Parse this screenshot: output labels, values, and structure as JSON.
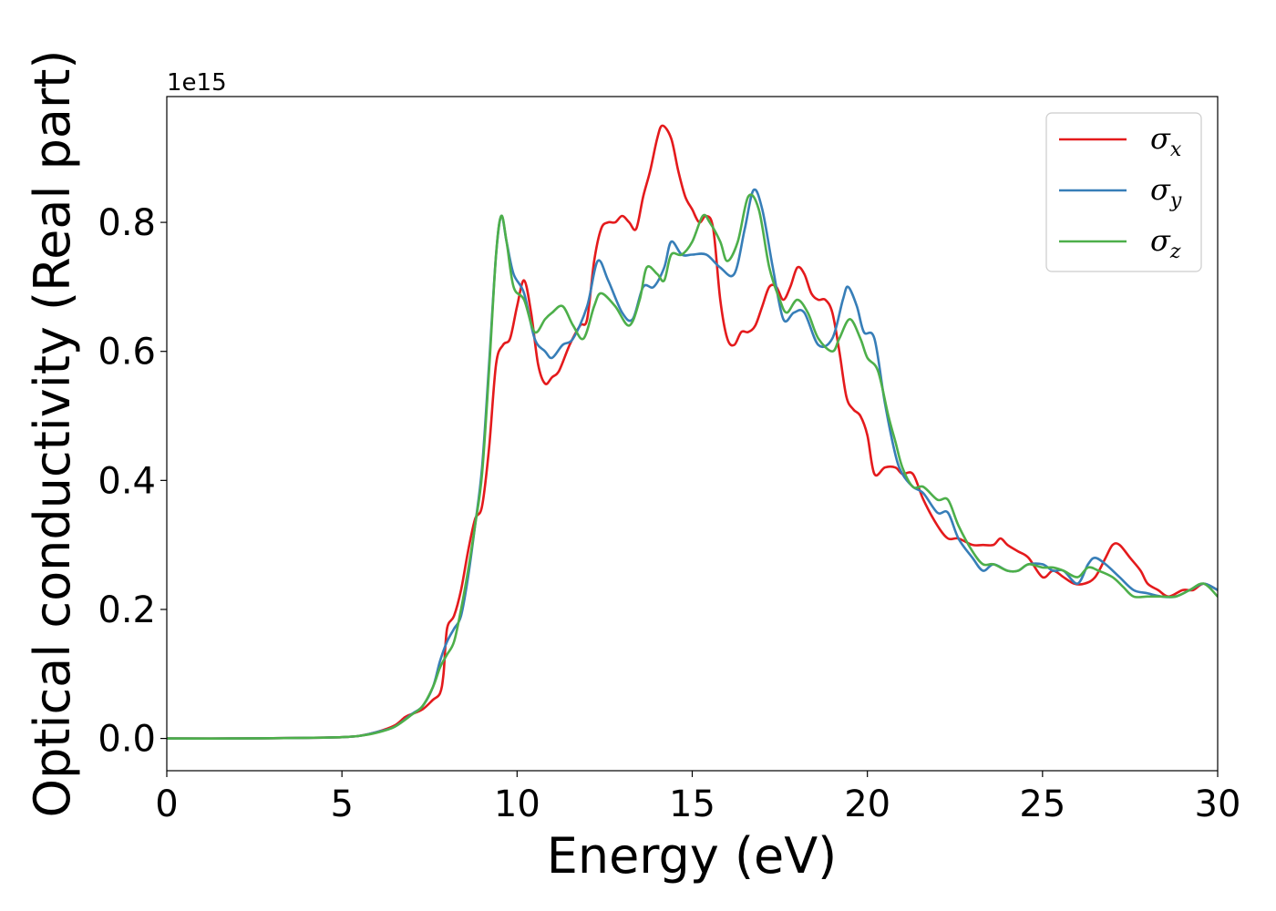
{
  "chart_data": {
    "type": "line",
    "title": "",
    "xlabel": "Energy (eV)",
    "ylabel": "Optical conductivity (Real part)",
    "y_offset_label": "1e15",
    "xlim": [
      0,
      30
    ],
    "ylim": [
      -0.05,
      0.995
    ],
    "xticks": [
      0,
      5,
      10,
      15,
      20,
      25,
      30
    ],
    "yticks": [
      0.0,
      0.2,
      0.4,
      0.6,
      0.8
    ],
    "xtick_labels": [
      "0",
      "5",
      "10",
      "15",
      "20",
      "25",
      "30"
    ],
    "ytick_labels": [
      "0.0",
      "0.2",
      "0.4",
      "0.6",
      "0.8"
    ],
    "grid": false,
    "legend_position": "top-right",
    "series": [
      {
        "name": "σx",
        "symbol": "σ",
        "subscript": "x",
        "color": "#e41a1c",
        "points": [
          [
            0,
            0.0
          ],
          [
            2,
            0.0
          ],
          [
            4,
            0.001
          ],
          [
            5,
            0.002
          ],
          [
            5.5,
            0.004
          ],
          [
            6,
            0.01
          ],
          [
            6.5,
            0.02
          ],
          [
            6.8,
            0.033
          ],
          [
            7,
            0.038
          ],
          [
            7.3,
            0.045
          ],
          [
            7.6,
            0.06
          ],
          [
            7.8,
            0.07
          ],
          [
            7.9,
            0.1
          ],
          [
            8.0,
            0.17
          ],
          [
            8.2,
            0.19
          ],
          [
            8.4,
            0.23
          ],
          [
            8.6,
            0.29
          ],
          [
            8.8,
            0.34
          ],
          [
            9.0,
            0.36
          ],
          [
            9.2,
            0.45
          ],
          [
            9.4,
            0.58
          ],
          [
            9.6,
            0.61
          ],
          [
            9.8,
            0.62
          ],
          [
            10.0,
            0.67
          ],
          [
            10.2,
            0.71
          ],
          [
            10.4,
            0.66
          ],
          [
            10.6,
            0.58
          ],
          [
            10.8,
            0.55
          ],
          [
            11.0,
            0.56
          ],
          [
            11.2,
            0.57
          ],
          [
            11.5,
            0.61
          ],
          [
            11.8,
            0.64
          ],
          [
            12.0,
            0.65
          ],
          [
            12.2,
            0.74
          ],
          [
            12.4,
            0.79
          ],
          [
            12.6,
            0.8
          ],
          [
            12.8,
            0.8
          ],
          [
            13.0,
            0.81
          ],
          [
            13.2,
            0.8
          ],
          [
            13.4,
            0.79
          ],
          [
            13.6,
            0.84
          ],
          [
            13.8,
            0.88
          ],
          [
            14.0,
            0.93
          ],
          [
            14.15,
            0.95
          ],
          [
            14.4,
            0.93
          ],
          [
            14.6,
            0.88
          ],
          [
            14.8,
            0.84
          ],
          [
            15.0,
            0.82
          ],
          [
            15.2,
            0.8
          ],
          [
            15.4,
            0.81
          ],
          [
            15.6,
            0.79
          ],
          [
            15.8,
            0.68
          ],
          [
            16.0,
            0.62
          ],
          [
            16.2,
            0.61
          ],
          [
            16.4,
            0.63
          ],
          [
            16.6,
            0.63
          ],
          [
            16.8,
            0.64
          ],
          [
            17.0,
            0.67
          ],
          [
            17.2,
            0.7
          ],
          [
            17.4,
            0.7
          ],
          [
            17.6,
            0.68
          ],
          [
            17.8,
            0.7
          ],
          [
            18.0,
            0.73
          ],
          [
            18.2,
            0.72
          ],
          [
            18.4,
            0.69
          ],
          [
            18.6,
            0.68
          ],
          [
            18.8,
            0.68
          ],
          [
            19.0,
            0.66
          ],
          [
            19.2,
            0.6
          ],
          [
            19.4,
            0.53
          ],
          [
            19.6,
            0.51
          ],
          [
            19.8,
            0.5
          ],
          [
            20.0,
            0.47
          ],
          [
            20.2,
            0.41
          ],
          [
            20.5,
            0.42
          ],
          [
            20.8,
            0.42
          ],
          [
            21.0,
            0.41
          ],
          [
            21.3,
            0.41
          ],
          [
            21.6,
            0.37
          ],
          [
            22.0,
            0.33
          ],
          [
            22.3,
            0.31
          ],
          [
            22.6,
            0.31
          ],
          [
            23.0,
            0.3
          ],
          [
            23.3,
            0.3
          ],
          [
            23.6,
            0.3
          ],
          [
            23.8,
            0.31
          ],
          [
            24.0,
            0.3
          ],
          [
            24.3,
            0.29
          ],
          [
            24.6,
            0.28
          ],
          [
            25.0,
            0.25
          ],
          [
            25.3,
            0.26
          ],
          [
            25.6,
            0.25
          ],
          [
            25.9,
            0.24
          ],
          [
            26.2,
            0.24
          ],
          [
            26.5,
            0.25
          ],
          [
            26.8,
            0.28
          ],
          [
            27.0,
            0.3
          ],
          [
            27.2,
            0.3
          ],
          [
            27.5,
            0.28
          ],
          [
            27.8,
            0.26
          ],
          [
            28.0,
            0.24
          ],
          [
            28.3,
            0.23
          ],
          [
            28.6,
            0.22
          ],
          [
            29.0,
            0.23
          ],
          [
            29.3,
            0.23
          ],
          [
            29.6,
            0.24
          ],
          [
            30.0,
            0.23
          ]
        ]
      },
      {
        "name": "σy",
        "symbol": "σ",
        "subscript": "y",
        "color": "#377eb8",
        "points": [
          [
            0,
            0.0
          ],
          [
            2,
            0.0
          ],
          [
            4,
            0.001
          ],
          [
            5,
            0.002
          ],
          [
            5.5,
            0.004
          ],
          [
            6,
            0.01
          ],
          [
            6.5,
            0.018
          ],
          [
            7,
            0.038
          ],
          [
            7.3,
            0.05
          ],
          [
            7.6,
            0.08
          ],
          [
            7.8,
            0.12
          ],
          [
            8.0,
            0.15
          ],
          [
            8.2,
            0.17
          ],
          [
            8.4,
            0.19
          ],
          [
            8.6,
            0.25
          ],
          [
            8.8,
            0.33
          ],
          [
            9.0,
            0.42
          ],
          [
            9.2,
            0.58
          ],
          [
            9.4,
            0.75
          ],
          [
            9.55,
            0.81
          ],
          [
            9.7,
            0.77
          ],
          [
            9.9,
            0.72
          ],
          [
            10.2,
            0.69
          ],
          [
            10.5,
            0.62
          ],
          [
            10.8,
            0.6
          ],
          [
            11.0,
            0.59
          ],
          [
            11.3,
            0.61
          ],
          [
            11.6,
            0.62
          ],
          [
            12.0,
            0.67
          ],
          [
            12.3,
            0.74
          ],
          [
            12.6,
            0.71
          ],
          [
            13.0,
            0.66
          ],
          [
            13.3,
            0.65
          ],
          [
            13.6,
            0.7
          ],
          [
            13.9,
            0.7
          ],
          [
            14.2,
            0.73
          ],
          [
            14.4,
            0.77
          ],
          [
            14.7,
            0.75
          ],
          [
            15.0,
            0.75
          ],
          [
            15.4,
            0.75
          ],
          [
            15.8,
            0.73
          ],
          [
            16.2,
            0.72
          ],
          [
            16.5,
            0.79
          ],
          [
            16.75,
            0.85
          ],
          [
            17.0,
            0.82
          ],
          [
            17.3,
            0.73
          ],
          [
            17.6,
            0.65
          ],
          [
            17.9,
            0.66
          ],
          [
            18.2,
            0.66
          ],
          [
            18.6,
            0.61
          ],
          [
            19.0,
            0.62
          ],
          [
            19.3,
            0.68
          ],
          [
            19.45,
            0.7
          ],
          [
            19.7,
            0.67
          ],
          [
            19.9,
            0.63
          ],
          [
            20.2,
            0.62
          ],
          [
            20.5,
            0.52
          ],
          [
            20.8,
            0.44
          ],
          [
            21.0,
            0.41
          ],
          [
            21.3,
            0.39
          ],
          [
            21.6,
            0.38
          ],
          [
            22.0,
            0.35
          ],
          [
            22.3,
            0.35
          ],
          [
            22.6,
            0.31
          ],
          [
            23.0,
            0.28
          ],
          [
            23.3,
            0.26
          ],
          [
            23.6,
            0.27
          ],
          [
            24.0,
            0.26
          ],
          [
            24.3,
            0.26
          ],
          [
            24.6,
            0.27
          ],
          [
            25.0,
            0.27
          ],
          [
            25.3,
            0.26
          ],
          [
            25.6,
            0.26
          ],
          [
            26.0,
            0.24
          ],
          [
            26.3,
            0.27
          ],
          [
            26.5,
            0.28
          ],
          [
            26.8,
            0.27
          ],
          [
            27.2,
            0.25
          ],
          [
            27.6,
            0.23
          ],
          [
            28.0,
            0.225
          ],
          [
            28.4,
            0.22
          ],
          [
            28.8,
            0.22
          ],
          [
            29.2,
            0.23
          ],
          [
            29.6,
            0.24
          ],
          [
            30.0,
            0.23
          ]
        ]
      },
      {
        "name": "σz",
        "symbol": "σ",
        "subscript": "z",
        "color": "#4daf4a",
        "points": [
          [
            0,
            0.0
          ],
          [
            2,
            0.0
          ],
          [
            4,
            0.001
          ],
          [
            5,
            0.002
          ],
          [
            5.5,
            0.004
          ],
          [
            6,
            0.009
          ],
          [
            6.5,
            0.018
          ],
          [
            7,
            0.037
          ],
          [
            7.3,
            0.05
          ],
          [
            7.6,
            0.08
          ],
          [
            7.8,
            0.11
          ],
          [
            8.0,
            0.13
          ],
          [
            8.2,
            0.15
          ],
          [
            8.4,
            0.2
          ],
          [
            8.6,
            0.26
          ],
          [
            8.8,
            0.33
          ],
          [
            9.0,
            0.41
          ],
          [
            9.2,
            0.57
          ],
          [
            9.4,
            0.75
          ],
          [
            9.55,
            0.81
          ],
          [
            9.7,
            0.77
          ],
          [
            9.9,
            0.7
          ],
          [
            10.2,
            0.68
          ],
          [
            10.5,
            0.63
          ],
          [
            10.8,
            0.65
          ],
          [
            11.0,
            0.66
          ],
          [
            11.3,
            0.67
          ],
          [
            11.6,
            0.64
          ],
          [
            11.9,
            0.62
          ],
          [
            12.2,
            0.67
          ],
          [
            12.4,
            0.69
          ],
          [
            12.8,
            0.67
          ],
          [
            13.2,
            0.64
          ],
          [
            13.5,
            0.68
          ],
          [
            13.7,
            0.73
          ],
          [
            14.0,
            0.72
          ],
          [
            14.2,
            0.71
          ],
          [
            14.4,
            0.75
          ],
          [
            14.7,
            0.75
          ],
          [
            15.0,
            0.77
          ],
          [
            15.3,
            0.81
          ],
          [
            15.5,
            0.8
          ],
          [
            15.8,
            0.77
          ],
          [
            16.0,
            0.74
          ],
          [
            16.3,
            0.77
          ],
          [
            16.6,
            0.84
          ],
          [
            16.9,
            0.82
          ],
          [
            17.2,
            0.73
          ],
          [
            17.5,
            0.68
          ],
          [
            17.7,
            0.66
          ],
          [
            18.0,
            0.68
          ],
          [
            18.3,
            0.66
          ],
          [
            18.6,
            0.62
          ],
          [
            19.0,
            0.6
          ],
          [
            19.2,
            0.62
          ],
          [
            19.5,
            0.65
          ],
          [
            19.8,
            0.62
          ],
          [
            20.0,
            0.59
          ],
          [
            20.3,
            0.57
          ],
          [
            20.6,
            0.5
          ],
          [
            20.8,
            0.46
          ],
          [
            21.0,
            0.42
          ],
          [
            21.3,
            0.39
          ],
          [
            21.6,
            0.39
          ],
          [
            22.0,
            0.37
          ],
          [
            22.3,
            0.37
          ],
          [
            22.6,
            0.33
          ],
          [
            23.0,
            0.29
          ],
          [
            23.3,
            0.27
          ],
          [
            23.6,
            0.27
          ],
          [
            24.0,
            0.26
          ],
          [
            24.3,
            0.26
          ],
          [
            24.6,
            0.27
          ],
          [
            25.0,
            0.265
          ],
          [
            25.3,
            0.265
          ],
          [
            25.6,
            0.26
          ],
          [
            26.0,
            0.25
          ],
          [
            26.3,
            0.265
          ],
          [
            26.6,
            0.26
          ],
          [
            27.0,
            0.25
          ],
          [
            27.3,
            0.235
          ],
          [
            27.6,
            0.22
          ],
          [
            28.0,
            0.22
          ],
          [
            28.4,
            0.22
          ],
          [
            28.8,
            0.22
          ],
          [
            29.2,
            0.23
          ],
          [
            29.6,
            0.24
          ],
          [
            30.0,
            0.22
          ]
        ]
      }
    ]
  }
}
